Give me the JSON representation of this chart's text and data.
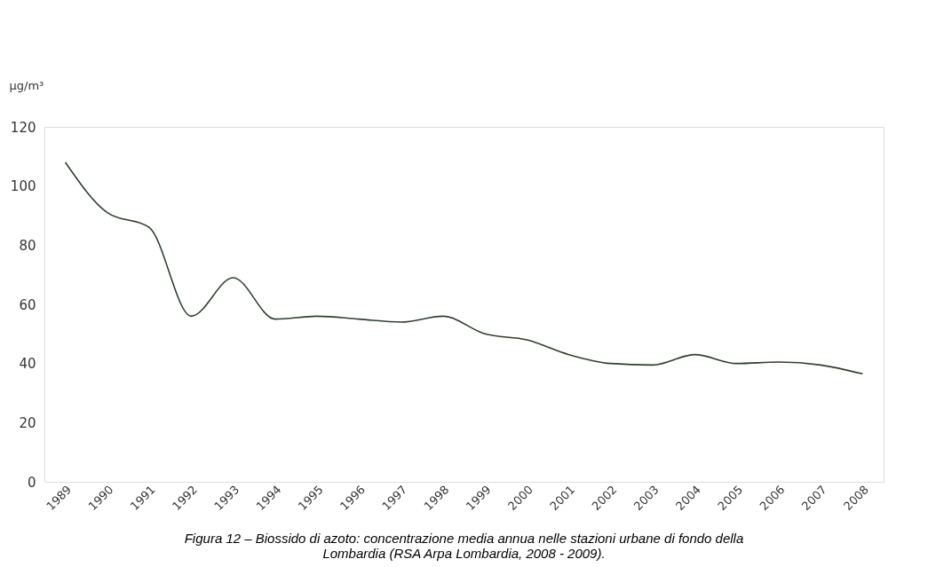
{
  "chart_data": {
    "type": "line",
    "ylabel": "µg/m³",
    "categories": [
      "1989",
      "1990",
      "1991",
      "1992",
      "1993",
      "1994",
      "1995",
      "1996",
      "1997",
      "1998",
      "1999",
      "2000",
      "2001",
      "2002",
      "2003",
      "2004",
      "2005",
      "2006",
      "2007",
      "2008"
    ],
    "series": [
      {
        "color": "#2f3f2f",
        "values": [
          108,
          91,
          86,
          56,
          69,
          55,
          56,
          55,
          54,
          56,
          50,
          48,
          43,
          40,
          39.5,
          43,
          40,
          40.5,
          39.5,
          36.5
        ]
      }
    ],
    "ylim": [
      0,
      120
    ],
    "yticks": [
      0,
      20,
      40,
      60,
      80,
      100,
      120
    ],
    "grid": false,
    "legend": false,
    "marker": "none",
    "line_style": "solid",
    "annotations": [
      "Figura 12 – Biossido di azoto: concentrazione media annua nelle stazioni urbane di fondo della Lombardia (RSA Arpa Lombardia, 2008 - 2009)."
    ]
  }
}
